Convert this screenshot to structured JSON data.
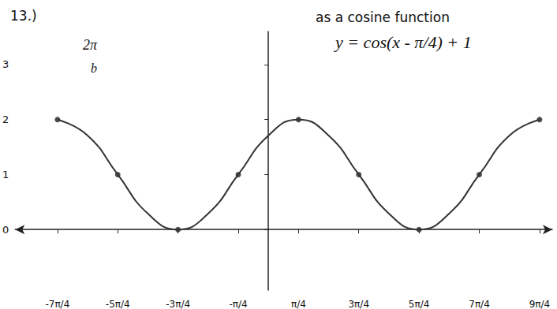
{
  "chart_data": {
    "type": "line",
    "title": "13.)",
    "subtitle": "as a cosine function",
    "annotations": [
      "y = cos(x - π/4) + 1",
      "2π",
      "b"
    ],
    "series": [
      {
        "type": "line",
        "marker": "none",
        "line_style": "solid",
        "color": "#333333",
        "x": [
          -5.498,
          -4.712,
          -3.927,
          -3.142,
          -2.356,
          -1.571,
          -0.785,
          0,
          0.785,
          1.571,
          2.356,
          3.142,
          3.927,
          4.712,
          5.498,
          6.283,
          7.069
        ],
        "values": [
          2,
          1.71,
          1,
          0.29,
          0,
          0.29,
          1,
          1.71,
          2,
          1.71,
          1,
          0.29,
          0,
          0.29,
          1,
          1.71,
          2
        ]
      },
      {
        "type": "scatter",
        "marker": "circle",
        "color": "#222222",
        "x": [
          -5.498,
          -3.927,
          -2.356,
          -0.785,
          0.785,
          2.356,
          3.927,
          5.498,
          7.069
        ],
        "values": [
          2,
          1,
          0,
          1,
          2,
          1,
          0,
          1,
          2
        ]
      }
    ],
    "xlim": [
      -6.6,
      7.4
    ],
    "xticks": [
      {
        "value": -5.498,
        "label": "-7π/4"
      },
      {
        "value": -3.927,
        "label": "-5π/4"
      },
      {
        "value": -2.356,
        "label": "-3π/4"
      },
      {
        "value": -0.785,
        "label": "-π/4"
      },
      {
        "value": 0.785,
        "label": "π/4"
      },
      {
        "value": 2.356,
        "label": "3π/4"
      },
      {
        "value": 3.927,
        "label": "5π/4"
      },
      {
        "value": 5.498,
        "label": "7π/4"
      },
      {
        "value": 7.069,
        "label": "9π/4"
      }
    ],
    "ylim": [
      -1.1,
      3.6
    ],
    "yticks": [
      0,
      1,
      2,
      3
    ],
    "grid": false
  }
}
